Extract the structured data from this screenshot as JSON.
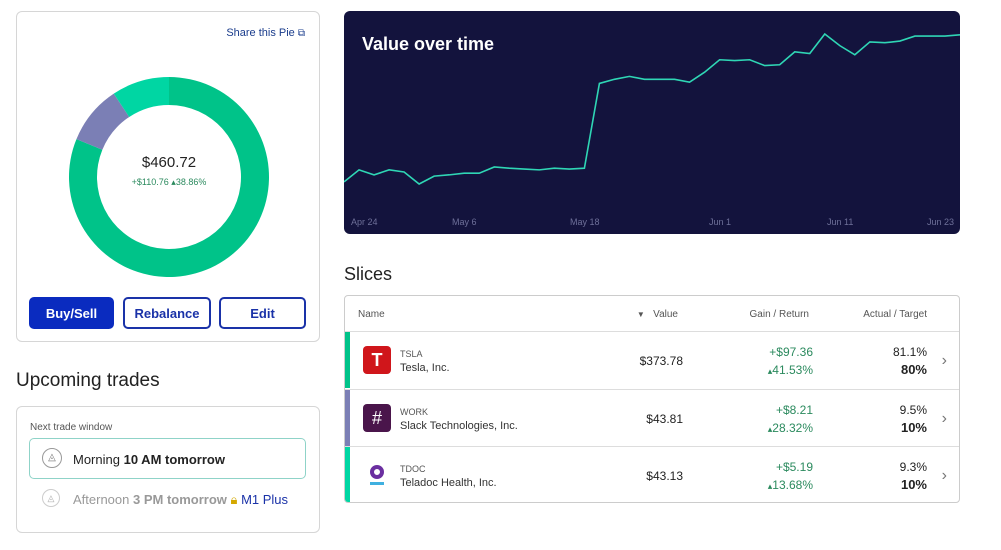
{
  "share_link": "Share this Pie",
  "pie": {
    "value": "$460.72",
    "gain": "+$110.76",
    "return": "38.86%"
  },
  "buttons": [
    "Buy/Sell",
    "Rebalance",
    "Edit"
  ],
  "upcoming": {
    "title": "Upcoming trades",
    "window_label": "Next trade window",
    "options": [
      {
        "period": "Morning",
        "time": "10 AM tomorrow"
      },
      {
        "period": "Afternoon",
        "time": "3 PM tomorrow",
        "badge": "M1 Plus"
      }
    ]
  },
  "value_chart": {
    "title": "Value over time",
    "x_labels": [
      "Apr 24",
      "May 6",
      "May 18",
      "Jun 1",
      "Jun 11",
      "Jun 23"
    ],
    "values": [
      107,
      136,
      124,
      136,
      131,
      102,
      121,
      124,
      128,
      128,
      143,
      140,
      138,
      136,
      140,
      138,
      140,
      344,
      354,
      361,
      354,
      354,
      354,
      347,
      371,
      401,
      399,
      401,
      387,
      389,
      420,
      416,
      463,
      435,
      413,
      444,
      442,
      446,
      458,
      458,
      458,
      461
    ]
  },
  "slices": {
    "title": "Slices",
    "columns": [
      "Name",
      "Value",
      "Gain / Return",
      "Actual / Target"
    ],
    "rows": [
      {
        "ticker": "TSLA",
        "name": "Tesla, Inc.",
        "value": "$373.78",
        "gain": "+$97.36",
        "return": "41.53%",
        "actual": {
          "value": 81.1,
          "label": "81.1%"
        },
        "target": "80%",
        "color": "#00c389"
      },
      {
        "ticker": "WORK",
        "name": "Slack Technologies, Inc.",
        "value": "$43.81",
        "gain": "+$8.21",
        "return": "28.32%",
        "actual": {
          "value": 9.5,
          "label": "9.5%"
        },
        "target": "10%",
        "color": "#7b7fb5"
      },
      {
        "ticker": "TDOC",
        "name": "Teladoc Health, Inc.",
        "value": "$43.13",
        "gain": "+$5.19",
        "return": "13.68%",
        "actual": {
          "value": 9.3,
          "label": "9.3%"
        },
        "target": "10%",
        "color": "#00d6a3"
      }
    ]
  }
}
